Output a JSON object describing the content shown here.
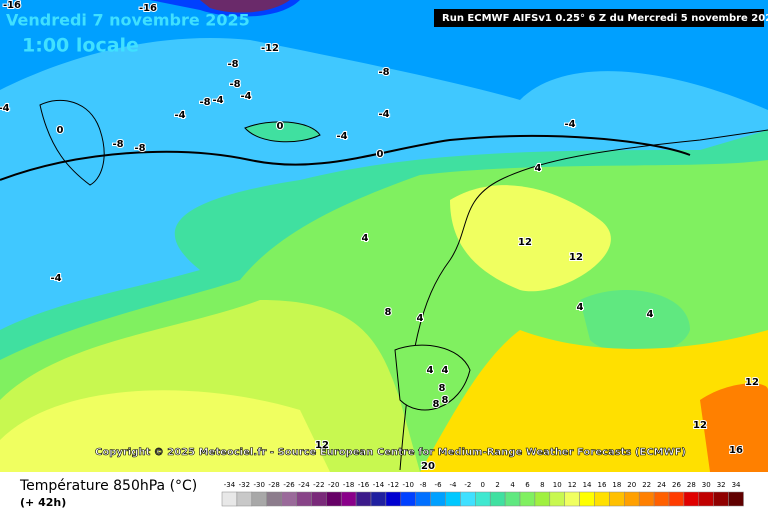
{
  "header": {
    "date": "Vendredi 7 novembre 2025",
    "time": "1:00 locale",
    "run": "Run ECMWF AIFSv1 0.25° 6 Z du Mercredi 5 novembre 2025"
  },
  "copyright": "Copyright © 2025 Meteociel.fr - Source European Centre for Medium-Range Weather Forecasts (ECMWF)",
  "footer": {
    "title": "Température 850hPa (°C)",
    "lead": "(+ 42h)"
  },
  "contour_labels": [
    -16,
    -16,
    -12,
    -8,
    -8,
    -8,
    -8,
    -4,
    -4,
    -4,
    -4,
    -4,
    -4,
    -8,
    -8,
    0,
    0,
    0,
    -4,
    -4,
    4,
    4,
    4,
    8,
    4,
    12,
    12,
    4,
    4,
    4,
    8,
    8,
    12,
    12,
    12,
    16,
    8,
    20
  ],
  "legend": {
    "labels": [
      -34,
      -32,
      -30,
      -28,
      -26,
      -24,
      -22,
      -20,
      -18,
      -16,
      -14,
      -12,
      -10,
      -8,
      -6,
      -4,
      -2,
      0,
      2,
      4,
      6,
      8,
      10,
      12,
      14,
      16,
      18,
      20,
      22,
      24,
      26,
      28,
      30,
      32,
      34
    ],
    "colors": [
      "#e8e8e8",
      "#c8c8c8",
      "#a8a8a8",
      "#8c7c8c",
      "#9a6a9a",
      "#884488",
      "#7a2a7a",
      "#660066",
      "#8a008a",
      "#3c1a8a",
      "#2020a0",
      "#0000d0",
      "#0040ff",
      "#0070ff",
      "#00a0ff",
      "#00c8ff",
      "#40e0ff",
      "#40e8d0",
      "#40e0a0",
      "#60e880",
      "#80f060",
      "#a0f040",
      "#c8f850",
      "#f0ff60",
      "#ffff00",
      "#ffe000",
      "#ffc000",
      "#ffa000",
      "#ff8000",
      "#ff6000",
      "#ff3c00",
      "#e00000",
      "#c00000",
      "#900000",
      "#600000"
    ]
  }
}
